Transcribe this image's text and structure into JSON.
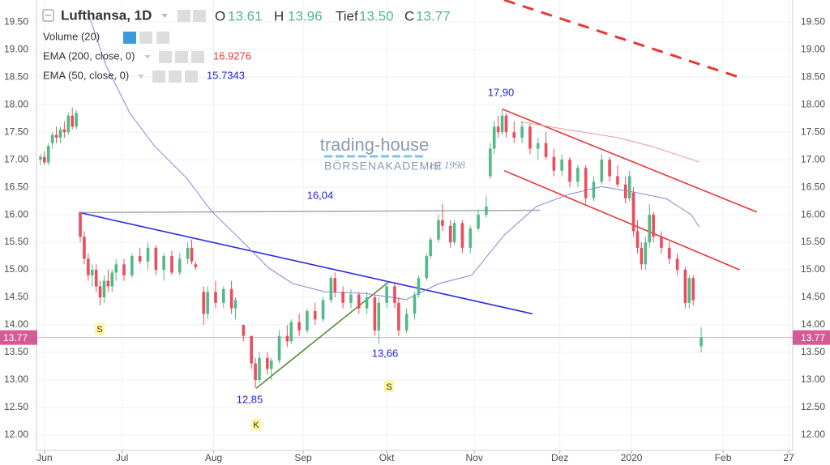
{
  "chart_data": {
    "type": "candlestick",
    "title": "Lufthansa, 1D",
    "ohlc_legend": {
      "labels": [
        "O",
        "H",
        "Tief",
        "C"
      ],
      "values": [
        13.61,
        13.96,
        13.5,
        13.77
      ],
      "value_labels": [
        "13.61",
        "13.96",
        "13.50",
        "13.77"
      ],
      "color": "#53b987"
    },
    "up_color": "#53b987",
    "down_color": "#eb4d5c",
    "x": [
      1,
      2,
      3,
      4,
      5,
      6,
      7,
      8,
      9,
      10,
      11,
      12,
      13,
      14,
      15,
      16,
      17,
      18,
      19,
      20,
      22,
      24,
      26,
      28,
      30,
      32,
      34,
      36,
      38,
      39,
      40,
      42,
      43,
      45,
      47,
      49,
      50,
      52,
      54,
      55,
      56,
      58,
      59,
      61,
      63,
      64,
      66,
      68,
      70,
      72,
      74,
      75,
      77,
      79,
      81,
      83,
      85,
      86,
      88,
      90,
      91,
      93,
      95,
      96,
      98,
      99,
      101,
      102,
      104,
      105,
      107,
      109,
      111,
      113,
      114,
      115,
      116,
      117,
      118,
      120,
      122,
      124,
      126,
      128,
      130,
      132,
      134,
      136,
      138,
      140,
      142,
      144,
      146,
      148,
      149,
      150,
      151,
      152,
      153,
      154,
      155,
      157,
      159,
      161,
      163,
      164,
      165,
      167
    ],
    "open": [
      17.0,
      17.05,
      16.95,
      17.3,
      17.45,
      17.4,
      17.55,
      17.5,
      17.8,
      17.6,
      16.05,
      15.6,
      15.2,
      14.9,
      15.0,
      14.7,
      14.5,
      14.8,
      14.7,
      14.95,
      15.1,
      14.9,
      15.25,
      15.15,
      15.4,
      15.0,
      15.25,
      14.95,
      15.2,
      15.4,
      15.1,
      14.6,
      14.2,
      14.6,
      14.4,
      14.65,
      14.3,
      14.0,
      13.8,
      13.3,
      13.0,
      13.4,
      13.2,
      13.35,
      13.8,
      13.7,
      14.05,
      13.9,
      14.25,
      14.1,
      14.45,
      14.85,
      14.6,
      14.4,
      14.55,
      14.3,
      14.5,
      13.9,
      14.4,
      14.7,
      14.4,
      13.9,
      14.2,
      14.55,
      14.85,
      15.25,
      15.55,
      15.9,
      15.8,
      15.5,
      15.85,
      15.4,
      15.75,
      16.0,
      16.7,
      17.2,
      17.6,
      17.5,
      17.8,
      17.5,
      17.4,
      17.6,
      17.2,
      17.3,
      17.05,
      16.8,
      17.0,
      16.6,
      16.85,
      16.3,
      16.6,
      17.0,
      16.7,
      16.55,
      16.3,
      16.4,
      15.7,
      15.4,
      15.1,
      15.5,
      16.0,
      15.6,
      15.4,
      15.2,
      15.0,
      14.4,
      14.85,
      13.61
    ],
    "high": [
      17.1,
      17.15,
      17.3,
      17.5,
      17.6,
      17.6,
      17.7,
      17.85,
      17.95,
      17.9,
      16.05,
      15.7,
      15.3,
      15.1,
      15.1,
      14.8,
      14.9,
      15.0,
      15.0,
      15.2,
      15.2,
      15.3,
      15.4,
      15.5,
      15.45,
      15.3,
      15.35,
      15.3,
      15.5,
      15.55,
      15.15,
      14.7,
      14.7,
      14.8,
      14.7,
      14.8,
      14.5,
      14.0,
      13.8,
      13.4,
      13.5,
      13.5,
      13.4,
      13.9,
      14.0,
      14.1,
      14.2,
      14.3,
      14.4,
      14.5,
      14.9,
      14.95,
      14.7,
      14.65,
      14.6,
      14.6,
      14.55,
      14.5,
      14.8,
      14.75,
      14.5,
      14.3,
      14.6,
      14.9,
      15.3,
      15.6,
      16.0,
      16.2,
      15.9,
      15.9,
      15.9,
      15.8,
      16.1,
      16.35,
      17.3,
      17.7,
      17.8,
      17.92,
      17.85,
      17.7,
      17.7,
      17.65,
      17.4,
      17.5,
      17.2,
      17.1,
      17.05,
      16.9,
      16.9,
      16.7,
      17.1,
      17.05,
      16.9,
      16.7,
      16.8,
      16.5,
      15.9,
      15.5,
      15.6,
      16.2,
      16.05,
      15.7,
      15.5,
      15.3,
      15.05,
      14.9,
      14.9,
      13.96
    ],
    "low": [
      16.9,
      16.9,
      16.9,
      17.2,
      17.3,
      17.3,
      17.4,
      17.45,
      17.55,
      17.55,
      15.5,
      15.1,
      14.8,
      14.7,
      14.6,
      14.35,
      14.4,
      14.6,
      14.6,
      14.8,
      14.8,
      14.85,
      15.1,
      15.0,
      14.9,
      14.8,
      14.9,
      14.9,
      15.1,
      15.1,
      15.0,
      14.0,
      14.1,
      14.3,
      14.3,
      14.2,
      14.1,
      13.7,
      13.2,
      12.85,
      12.95,
      13.1,
      13.0,
      13.3,
      13.6,
      13.65,
      13.8,
      13.85,
      14.0,
      14.05,
      14.4,
      14.5,
      14.3,
      14.3,
      14.2,
      14.2,
      13.8,
      13.66,
      14.3,
      14.3,
      13.8,
      13.85,
      14.1,
      14.5,
      14.8,
      15.2,
      15.5,
      15.7,
      15.4,
      15.45,
      15.3,
      15.3,
      15.7,
      15.95,
      16.65,
      17.1,
      17.4,
      17.45,
      17.4,
      17.3,
      17.3,
      17.1,
      17.0,
      17.0,
      16.7,
      16.7,
      16.5,
      16.5,
      16.2,
      16.25,
      16.55,
      16.6,
      16.5,
      16.2,
      16.25,
      15.6,
      15.3,
      15.0,
      15.0,
      15.4,
      15.5,
      15.3,
      15.1,
      14.9,
      14.3,
      14.3,
      14.35,
      13.5
    ],
    "close": [
      17.05,
      16.95,
      17.25,
      17.45,
      17.4,
      17.55,
      17.5,
      17.8,
      17.6,
      17.85,
      15.6,
      15.2,
      14.9,
      15.0,
      14.7,
      14.5,
      14.8,
      14.7,
      14.95,
      15.1,
      14.9,
      15.25,
      15.15,
      15.4,
      15.0,
      15.25,
      14.95,
      15.2,
      15.4,
      15.15,
      15.05,
      14.2,
      14.6,
      14.4,
      14.65,
      14.3,
      14.45,
      13.8,
      13.3,
      13.0,
      13.4,
      13.2,
      13.35,
      13.8,
      13.7,
      14.05,
      13.9,
      14.25,
      14.1,
      14.45,
      14.85,
      14.6,
      14.4,
      14.55,
      14.3,
      14.5,
      13.9,
      14.4,
      14.7,
      14.4,
      13.9,
      14.2,
      14.55,
      14.85,
      15.25,
      15.55,
      15.9,
      15.8,
      15.5,
      15.85,
      15.4,
      15.75,
      16.0,
      16.15,
      17.2,
      17.6,
      17.5,
      17.8,
      17.5,
      17.4,
      17.6,
      17.2,
      17.3,
      17.05,
      16.8,
      17.0,
      16.6,
      16.85,
      16.3,
      16.6,
      17.0,
      16.7,
      16.55,
      16.3,
      16.7,
      15.7,
      15.4,
      15.1,
      15.5,
      16.0,
      15.6,
      15.4,
      15.2,
      15.0,
      14.4,
      14.85,
      14.45,
      13.77
    ],
    "last_price": 13.77,
    "last_price_color": "#d45c94",
    "indicators": [
      {
        "name": "Volume (20)"
      },
      {
        "name": "EMA (200, close, 0)",
        "last_value": 16.9276,
        "color": "#e53935",
        "line_color": "#ef9a9a",
        "x": [
          121.6,
          133.8,
          146,
          154.2,
          166.5
        ],
        "values": [
          17.69,
          17.54,
          17.4,
          17.25,
          16.96
        ]
      },
      {
        "name": "EMA (50, close, 0)",
        "last_value": 15.7343,
        "color": "#2323d6",
        "line_color": "#8587dc",
        "x": [
          13.3,
          17.4,
          23.5,
          29.6,
          37.8,
          43.9,
          52.1,
          58.2,
          64.4,
          72.5,
          82.7,
          92.9,
          101.1,
          109.3,
          117.5,
          125.6,
          133.8,
          142,
          150.2,
          158.3,
          164.5,
          166.5
        ],
        "values": [
          19.6,
          18.72,
          17.84,
          17.25,
          16.66,
          16.07,
          15.49,
          15.04,
          14.75,
          14.6,
          14.57,
          14.46,
          14.75,
          14.9,
          15.63,
          16.15,
          16.37,
          16.51,
          16.41,
          16.29,
          16.0,
          15.78
        ]
      }
    ],
    "drawings": [
      {
        "color": "#a8a8a8",
        "x": [
          10.8,
          126.5
        ],
        "y": [
          16.04,
          16.08
        ]
      },
      {
        "color": "#2a2ae0",
        "x": [
          10.8,
          124.6
        ],
        "y": [
          16.04,
          14.2
        ]
      },
      {
        "color": "#5a8a3a",
        "x": [
          55.2,
          88.5
        ],
        "y": [
          12.85,
          14.78
        ]
      },
      {
        "color": "#e53935",
        "x": [
          117,
          181
        ],
        "y": [
          17.92,
          16.05
        ]
      },
      {
        "color": "#e53935",
        "x": [
          117.5,
          176.7
        ],
        "y": [
          16.8,
          15.0
        ]
      },
      {
        "color": "#e53935",
        "dashed": true,
        "x": [
          117.5,
          177.7
        ],
        "y": [
          19.9,
          18.47
        ]
      }
    ],
    "annotations": [
      "17,90",
      "16,04",
      "13,66",
      "12,85"
    ],
    "annotation_color": "#2323d6",
    "markers": [
      "S",
      "S",
      "K"
    ],
    "watermark": {
      "title": "trading-house",
      "subtitle": "BÖRSENAKADEMIE",
      "est": "est 1998"
    },
    "xlim": [
      0,
      190
    ],
    "xticks": [
      {
        "value": 2,
        "label": "Jun"
      },
      {
        "value": 21.5,
        "label": "Jul"
      },
      {
        "value": 44.5,
        "label": "Aug"
      },
      {
        "value": 67,
        "label": "Sep"
      },
      {
        "value": 88,
        "label": "Okt"
      },
      {
        "value": 110,
        "label": "Nov"
      },
      {
        "value": 131.5,
        "label": "Dez"
      },
      {
        "value": 149.5,
        "label": "2020"
      },
      {
        "value": 172.5,
        "label": "Feb"
      },
      {
        "value": 189,
        "label": "27"
      }
    ],
    "ylim": [
      11.72,
      19.9
    ],
    "yticks": [
      {
        "value": 12,
        "label": "12.00"
      },
      {
        "value": 12.5,
        "label": "12.50"
      },
      {
        "value": 13,
        "label": "13.00"
      },
      {
        "value": 13.5,
        "label": "13.50"
      },
      {
        "value": 14,
        "label": "14.00"
      },
      {
        "value": 14.5,
        "label": "14.50"
      },
      {
        "value": 15,
        "label": "15.00"
      },
      {
        "value": 15.5,
        "label": "15.50"
      },
      {
        "value": 16,
        "label": "16.00"
      },
      {
        "value": 16.5,
        "label": "16.50"
      },
      {
        "value": 17,
        "label": "17.00"
      },
      {
        "value": 17.5,
        "label": "17.50"
      },
      {
        "value": 18,
        "label": "18.00"
      },
      {
        "value": 18.5,
        "label": "18.50"
      },
      {
        "value": 19,
        "label": "19.00"
      },
      {
        "value": 19.5,
        "label": "19.50"
      }
    ],
    "grid": true
  }
}
